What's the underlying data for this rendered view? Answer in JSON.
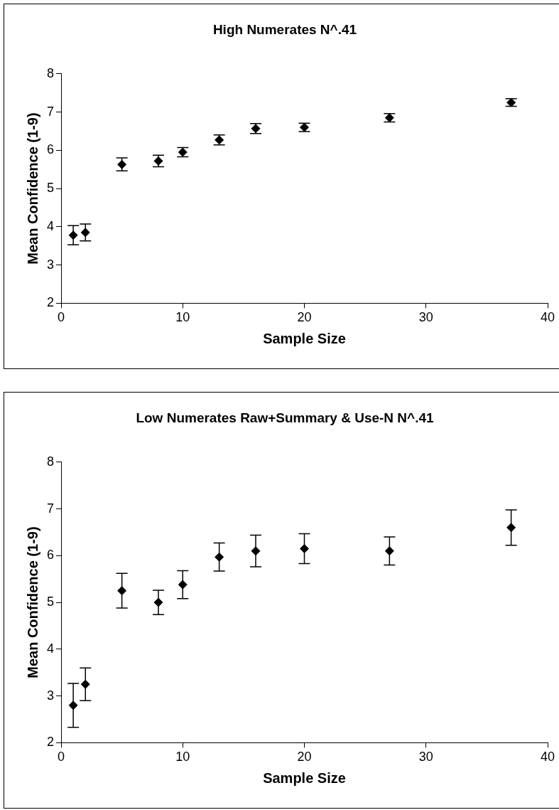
{
  "chart_data": [
    {
      "type": "scatter",
      "title": "High Numerates N^.41",
      "xlabel": "Sample Size",
      "ylabel": "Mean Confidence (1-9)",
      "x": [
        1,
        2,
        5,
        8,
        10,
        13,
        16,
        20,
        27,
        37
      ],
      "series": [
        {
          "color": "#000000",
          "values": [
            3.78,
            3.85,
            5.63,
            5.72,
            5.95,
            6.27,
            6.57,
            6.6,
            6.85,
            7.25
          ],
          "errors": [
            0.25,
            0.22,
            0.17,
            0.15,
            0.12,
            0.13,
            0.13,
            0.11,
            0.11,
            0.1
          ]
        }
      ],
      "xlim": [
        0,
        40
      ],
      "xticks": [
        0,
        10,
        20,
        30,
        40
      ],
      "ylim": [
        2,
        8
      ],
      "yticks": [
        2,
        3,
        4,
        5,
        6,
        7,
        8
      ],
      "grid": false,
      "legend": false,
      "marker": "diamond"
    },
    {
      "type": "scatter",
      "title": "Low Numerates Raw+Summary & Use-N N^.41",
      "xlabel": "Sample Size",
      "ylabel": "Mean Confidence (1-9)",
      "x": [
        1,
        2,
        5,
        8,
        10,
        13,
        16,
        20,
        27,
        37
      ],
      "series": [
        {
          "color": "#000000",
          "values": [
            2.8,
            3.25,
            5.25,
            5.0,
            5.38,
            5.97,
            6.1,
            6.15,
            6.1,
            6.6
          ],
          "errors": [
            0.47,
            0.35,
            0.37,
            0.26,
            0.3,
            0.3,
            0.34,
            0.32,
            0.3,
            0.38
          ]
        }
      ],
      "xlim": [
        0,
        40
      ],
      "xticks": [
        0,
        10,
        20,
        30,
        40
      ],
      "ylim": [
        2,
        8
      ],
      "yticks": [
        2,
        3,
        4,
        5,
        6,
        7,
        8
      ],
      "grid": false,
      "legend": false,
      "marker": "diamond"
    }
  ]
}
